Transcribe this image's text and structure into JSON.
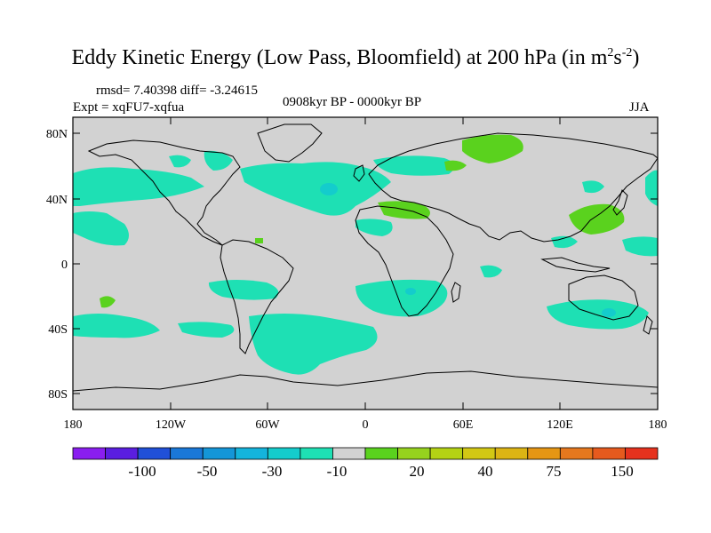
{
  "title": {
    "main": "Eddy Kinetic Energy (Low Pass, Bloomfield) at 200 hPa (in m",
    "sup1": "2",
    "mid": "s",
    "sup2": "-2",
    "end": ")"
  },
  "stats": "rmsd= 7.40398 diff= -3.24615",
  "experiment": "Expt = xqFU7-xqfua",
  "period": "0908kyr BP - 0000kyr BP",
  "season": "JJA",
  "lat_labels": [
    "80N",
    "40N",
    "0",
    "40S",
    "80S"
  ],
  "lon_labels": [
    "180",
    "120W",
    "60W",
    "0",
    "60E",
    "120E",
    "180"
  ],
  "colorbar": {
    "colors": [
      "#8a1ef0",
      "#5a1ee0",
      "#2050d8",
      "#1a78d8",
      "#1496d8",
      "#14b4dc",
      "#14cccc",
      "#1ee0b4",
      "#d2d2d2",
      "#5ad21e",
      "#96d21e",
      "#b4d214",
      "#d2c814",
      "#dcb414",
      "#e69614",
      "#e6781e",
      "#e65a1e",
      "#e6321e"
    ],
    "labels": [
      "-100",
      "-50",
      "-30",
      "-10",
      "20",
      "40",
      "75",
      "150"
    ]
  },
  "colors": {
    "ocean_background": "#d2d2d2",
    "negative_anomaly": "#1ee0b4",
    "negative_strong": "#14b4dc",
    "positive_anomaly": "#5ad21e"
  }
}
